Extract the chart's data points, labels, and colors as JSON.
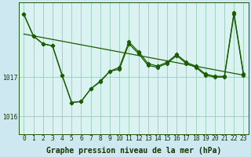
{
  "title": "Graphe pression niveau de la mer (hPa)",
  "bg_color": "#cde8f0",
  "plot_bg_color": "#daf2f2",
  "line_color": "#1a5c00",
  "grid_color": "#99ccbb",
  "tick_color": "#1a3300",
  "xlim": [
    -0.5,
    23.5
  ],
  "ylim": [
    1015.55,
    1018.9
  ],
  "yticks": [
    1016,
    1017
  ],
  "xticks": [
    0,
    1,
    2,
    3,
    4,
    5,
    6,
    7,
    8,
    9,
    10,
    11,
    12,
    13,
    14,
    15,
    16,
    17,
    18,
    19,
    20,
    21,
    22,
    23
  ],
  "series1_x": [
    0,
    1,
    2,
    3,
    4,
    5,
    6,
    7,
    8,
    9,
    10,
    11,
    12,
    13,
    14,
    15,
    16,
    17,
    18,
    19,
    20,
    21,
    22,
    23
  ],
  "series1_y": [
    1018.6,
    1018.05,
    1017.85,
    1017.8,
    1017.05,
    1016.35,
    1016.38,
    1016.7,
    1016.88,
    1017.15,
    1017.2,
    1017.85,
    1017.6,
    1017.3,
    1017.25,
    1017.35,
    1017.55,
    1017.35,
    1017.25,
    1017.05,
    1017.0,
    1017.0,
    1018.6,
    1017.05
  ],
  "series2_x": [
    0,
    1,
    2,
    3,
    4,
    5,
    6,
    7,
    8,
    9,
    10,
    11,
    12,
    13,
    14,
    15,
    16,
    17,
    18,
    19,
    20,
    21,
    22,
    23
  ],
  "series2_y": [
    1018.6,
    1018.05,
    1017.85,
    1017.8,
    1017.05,
    1016.35,
    1016.38,
    1016.7,
    1016.9,
    1017.15,
    1017.25,
    1017.9,
    1017.65,
    1017.35,
    1017.28,
    1017.38,
    1017.58,
    1017.38,
    1017.28,
    1017.08,
    1017.02,
    1017.02,
    1018.65,
    1017.08
  ],
  "trend_x": [
    0,
    23
  ],
  "trend_y": [
    1018.1,
    1017.05
  ],
  "marker_size": 2.2,
  "line_width": 0.9,
  "tick_fontsize": 5.8,
  "label_fontsize": 7.0
}
